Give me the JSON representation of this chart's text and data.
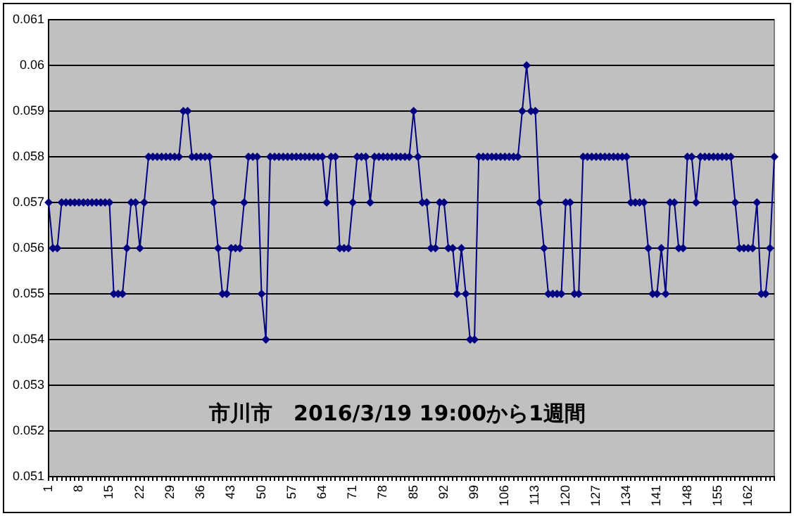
{
  "chart_data": {
    "type": "line",
    "annotations": [
      "市川市　2016/3/19 19:00から1週間"
    ],
    "categories": [
      "1",
      null,
      null,
      null,
      null,
      null,
      null,
      "8",
      null,
      null,
      null,
      null,
      null,
      null,
      "15",
      null,
      null,
      null,
      null,
      null,
      null,
      "22",
      null,
      null,
      null,
      null,
      null,
      null,
      "29",
      null,
      null,
      null,
      null,
      null,
      null,
      "36",
      null,
      null,
      null,
      null,
      null,
      null,
      "43",
      null,
      null,
      null,
      null,
      null,
      null,
      "50",
      null,
      null,
      null,
      null,
      null,
      null,
      "57",
      null,
      null,
      null,
      null,
      null,
      null,
      "64",
      null,
      null,
      null,
      null,
      null,
      null,
      "71",
      null,
      null,
      null,
      null,
      null,
      null,
      "78",
      null,
      null,
      null,
      null,
      null,
      null,
      "85",
      null,
      null,
      null,
      null,
      null,
      null,
      "92",
      null,
      null,
      null,
      null,
      null,
      null,
      "99",
      null,
      null,
      null,
      null,
      null,
      null,
      "106",
      null,
      null,
      null,
      null,
      null,
      null,
      "113",
      null,
      null,
      null,
      null,
      null,
      null,
      "120",
      null,
      null,
      null,
      null,
      null,
      null,
      "127",
      null,
      null,
      null,
      null,
      null,
      null,
      "134",
      null,
      null,
      null,
      null,
      null,
      null,
      "141",
      null,
      null,
      null,
      null,
      null,
      null,
      "148",
      null,
      null,
      null,
      null,
      null,
      null,
      "155",
      null,
      null,
      null,
      null,
      null,
      null,
      "162",
      null,
      null,
      null,
      null,
      null,
      null
    ],
    "series": [
      {
        "color": "#000080",
        "values": [
          0.057,
          0.056,
          0.056,
          0.057,
          0.057,
          0.057,
          0.057,
          0.057,
          0.057,
          0.057,
          0.057,
          0.057,
          0.057,
          0.057,
          0.057,
          0.055,
          0.055,
          0.055,
          0.056,
          0.057,
          0.057,
          0.056,
          0.057,
          0.058,
          0.058,
          0.058,
          0.058,
          0.058,
          0.058,
          0.058,
          0.058,
          0.059,
          0.059,
          0.058,
          0.058,
          0.058,
          0.058,
          0.058,
          0.057,
          0.056,
          0.055,
          0.055,
          0.056,
          0.056,
          0.056,
          0.057,
          0.058,
          0.058,
          0.058,
          0.055,
          0.054,
          0.058,
          0.058,
          0.058,
          0.058,
          0.058,
          0.058,
          0.058,
          0.058,
          0.058,
          0.058,
          0.058,
          0.058,
          0.058,
          0.057,
          0.058,
          0.058,
          0.056,
          0.056,
          0.056,
          0.057,
          0.058,
          0.058,
          0.058,
          0.057,
          0.058,
          0.058,
          0.058,
          0.058,
          0.058,
          0.058,
          0.058,
          0.058,
          0.058,
          0.059,
          0.058,
          0.057,
          0.057,
          0.056,
          0.056,
          0.057,
          0.057,
          0.056,
          0.056,
          0.055,
          0.056,
          0.055,
          0.054,
          0.054,
          0.058,
          0.058,
          0.058,
          0.058,
          0.058,
          0.058,
          0.058,
          0.058,
          0.058,
          0.058,
          0.059,
          0.06,
          0.059,
          0.059,
          0.057,
          0.056,
          0.055,
          0.055,
          0.055,
          0.055,
          0.057,
          0.057,
          0.055,
          0.055,
          0.058,
          0.058,
          0.058,
          0.058,
          0.058,
          0.058,
          0.058,
          0.058,
          0.058,
          0.058,
          0.058,
          0.057,
          0.057,
          0.057,
          0.057,
          0.056,
          0.055,
          0.055,
          0.056,
          0.055,
          0.057,
          0.057,
          0.056,
          0.056,
          0.058,
          0.058,
          0.057,
          0.058,
          0.058,
          0.058,
          0.058,
          0.058,
          0.058,
          0.058,
          0.058,
          0.057,
          0.056,
          0.056,
          0.056,
          0.056,
          0.057,
          0.055,
          0.055,
          0.056,
          0.058
        ]
      }
    ],
    "ylim": [
      0.051,
      0.061
    ],
    "yticks": [
      0.051,
      0.052,
      0.053,
      0.054,
      0.055,
      0.056,
      0.057,
      0.058,
      0.059,
      0.06,
      0.061
    ],
    "grid": "y",
    "legend": false,
    "marker": "diamond",
    "line_style": "solid"
  }
}
